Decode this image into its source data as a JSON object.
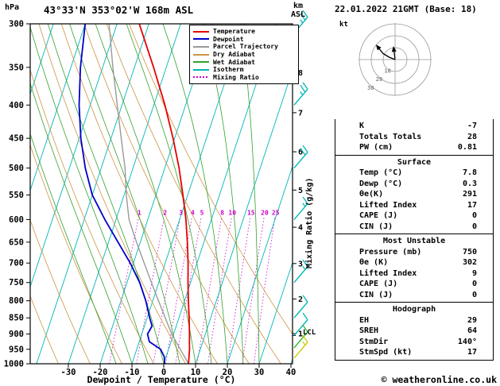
{
  "header": {
    "pressure_unit": "hPa",
    "station_title": "43°33'N 353°02'W 168m ASL",
    "alt_unit_line1": "km",
    "alt_unit_line2": "ASL",
    "date_line": "22.01.2022 21GMT (Base: 18)",
    "copyright": "© weatheronline.co.uk"
  },
  "axes": {
    "xlabel": "Dewpoint / Temperature (°C)",
    "mixing_ratio_label": "Mixing Ratio (g/kg)",
    "lcl_label": "LCL",
    "pressure_ticks_hpa": [
      300,
      350,
      400,
      450,
      500,
      550,
      600,
      650,
      700,
      750,
      800,
      850,
      900,
      950,
      1000
    ],
    "temp_ticks_c": [
      -30,
      -20,
      -10,
      0,
      10,
      20,
      30,
      40
    ],
    "km_ticks": [
      8,
      7,
      6,
      5,
      4,
      3,
      2,
      1
    ]
  },
  "colors": {
    "temperature": "#e60000",
    "dewpoint": "#0000cc",
    "parcel": "#9a9a9a",
    "dry_adiabat": "#cc9544",
    "wet_adiabat": "#33a02c",
    "isotherm": "#00b6b6",
    "mixing_ratio": "#cc00cc",
    "wind_barb": "#00b6b6",
    "wind_barb_green": "#2eb82e",
    "wind_barb_yellow": "#cccc00"
  },
  "legend": {
    "items": [
      {
        "label": "Temperature",
        "color": "#e60000",
        "dash": false
      },
      {
        "label": "Dewpoint",
        "color": "#0000cc",
        "dash": false
      },
      {
        "label": "Parcel Trajectory",
        "color": "#9a9a9a",
        "dash": false
      },
      {
        "label": "Dry Adiabat",
        "color": "#cc9544",
        "dash": false
      },
      {
        "label": "Wet Adiabat",
        "color": "#33a02c",
        "dash": false
      },
      {
        "label": "Isotherm",
        "color": "#00b6b6",
        "dash": false
      },
      {
        "label": "Mixing Ratio",
        "color": "#cc00cc",
        "dash": true
      }
    ]
  },
  "chart_data": {
    "type": "line",
    "title": "43°33'N 353°02'W 168m ASL skew-T log-P sounding",
    "x_axis": {
      "label": "Dewpoint / Temperature (°C)",
      "range_c": [
        -40,
        40
      ]
    },
    "y_axis": {
      "label": "hPa",
      "scale": "log",
      "range_hpa": [
        300,
        1000
      ]
    },
    "temperature_profile": {
      "pressure_hpa": [
        1000,
        975,
        950,
        925,
        900,
        850,
        800,
        750,
        700,
        650,
        600,
        550,
        500,
        450,
        400,
        350,
        300
      ],
      "temp_c": [
        7.8,
        7.2,
        6.6,
        5.8,
        5.0,
        3.2,
        1.2,
        -0.8,
        -2.8,
        -5.2,
        -8.0,
        -11.5,
        -15.5,
        -20.5,
        -26.5,
        -34.0,
        -43.0
      ]
    },
    "dewpoint_profile": {
      "pressure_hpa": [
        1000,
        975,
        950,
        925,
        900,
        875,
        850,
        800,
        750,
        700,
        650,
        600,
        550,
        500,
        450,
        400,
        350,
        300
      ],
      "temp_c": [
        0.3,
        -0.6,
        -2.5,
        -6.8,
        -8.2,
        -7.6,
        -9.2,
        -12.2,
        -16.0,
        -21.0,
        -27.0,
        -33.5,
        -40.0,
        -45.0,
        -49.5,
        -53.5,
        -57.0,
        -60.0
      ]
    },
    "parcel_profile": {
      "pressure_hpa": [
        1000,
        950,
        900,
        850,
        800,
        750,
        700,
        650,
        600,
        550,
        500,
        450,
        400,
        350,
        300
      ],
      "temp_c": [
        7.8,
        3.7,
        -0.6,
        -4.3,
        -8.2,
        -12.3,
        -16.6,
        -21.2,
        -25.9,
        -29.3,
        -32.5,
        -36.8,
        -41.5,
        -46.8,
        -52.5
      ]
    },
    "isotherm_step_c": 10,
    "dry_adiabats_theta_k": [
      220,
      230,
      240,
      250,
      260,
      270,
      280,
      290,
      300,
      310,
      320
    ],
    "wet_adiabat_surface_temps_c": [
      -15,
      -10,
      -5,
      0,
      5,
      10,
      15,
      20,
      25,
      30
    ],
    "mixing_ratio_lines_g_per_kg": [
      1,
      2,
      3,
      4,
      5,
      8,
      10,
      15,
      20,
      25
    ],
    "lcl_pressure_hpa": 905,
    "wind_barbs": [
      {
        "pressure_hpa": 310,
        "speed_kt": 25,
        "color": "#00b6b6"
      },
      {
        "pressure_hpa": 400,
        "speed_kt": 25,
        "color": "#00b6b6"
      },
      {
        "pressure_hpa": 500,
        "speed_kt": 20,
        "color": "#00b6b6"
      },
      {
        "pressure_hpa": 600,
        "speed_kt": 15,
        "color": "#00b6b6"
      },
      {
        "pressure_hpa": 750,
        "speed_kt": 15,
        "color": "#00b6b6"
      },
      {
        "pressure_hpa": 850,
        "speed_kt": 10,
        "color": "#00b6b6"
      },
      {
        "pressure_hpa": 905,
        "speed_kt": 10,
        "color": "#00b6b6"
      },
      {
        "pressure_hpa": 945,
        "speed_kt": 10,
        "color": "#2eb82e"
      },
      {
        "pressure_hpa": 980,
        "speed_kt": 15,
        "color": "#cccc00"
      }
    ]
  },
  "hodograph": {
    "unit": "kt",
    "rings_kt": [
      10,
      20,
      30
    ],
    "trace_u_v_kt": [
      [
        0,
        0
      ],
      [
        -5,
        2
      ],
      [
        -10,
        5
      ],
      [
        -14,
        10
      ]
    ],
    "storm_arrow_u_v_kt": [
      [
        0,
        0
      ],
      [
        -1,
        8
      ]
    ]
  },
  "indices": {
    "sections": [
      {
        "title": null,
        "rows": [
          [
            "K",
            "-7"
          ],
          [
            "Totals Totals",
            "28"
          ],
          [
            "PW (cm)",
            "0.81"
          ]
        ]
      },
      {
        "title": "Surface",
        "rows": [
          [
            "Temp (°C)",
            "7.8"
          ],
          [
            "Dewp (°C)",
            "0.3"
          ],
          [
            "θe(K)",
            "291"
          ],
          [
            "Lifted Index",
            "17"
          ],
          [
            "CAPE (J)",
            "0"
          ],
          [
            "CIN (J)",
            "0"
          ]
        ]
      },
      {
        "title": "Most Unstable",
        "rows": [
          [
            "Pressure (mb)",
            "750"
          ],
          [
            "θe (K)",
            "302"
          ],
          [
            "Lifted Index",
            "9"
          ],
          [
            "CAPE (J)",
            "0"
          ],
          [
            "CIN (J)",
            "0"
          ]
        ]
      },
      {
        "title": "Hodograph",
        "rows": [
          [
            "EH",
            "29"
          ],
          [
            "SREH",
            "64"
          ],
          [
            "StmDir",
            "140°"
          ],
          [
            "StmSpd (kt)",
            "17"
          ]
        ]
      }
    ]
  }
}
